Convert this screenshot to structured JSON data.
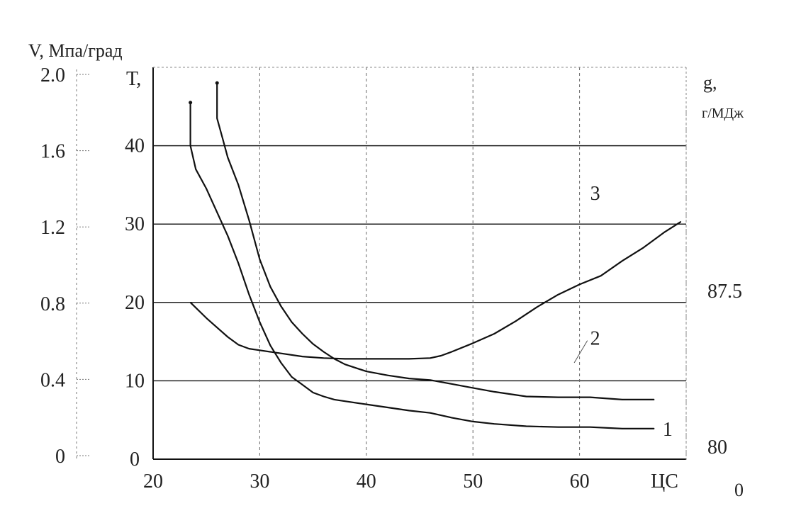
{
  "chart_data": {
    "type": "line",
    "x_axis": {
      "range": [
        20,
        70
      ],
      "ticks": [
        20,
        30,
        40,
        50,
        60
      ],
      "tick_labels": [
        "20",
        "30",
        "40",
        "50",
        "60"
      ],
      "label": "ЦС",
      "gridlines": true
    },
    "v_axis": {
      "label": "V, Мпа/град",
      "range": [
        0,
        2.0
      ],
      "tick_labels": [
        "0",
        "0.4",
        "0.8",
        "1.2",
        "1.6",
        "2.0"
      ]
    },
    "t_axis": {
      "label": "Т,",
      "range": [
        0,
        50
      ],
      "ticks": [
        0,
        10,
        20,
        30,
        40
      ],
      "tick_labels": [
        "0",
        "10",
        "20",
        "30",
        "40"
      ],
      "gridlines": true
    },
    "g_axis": {
      "label_line1": "g,",
      "label_line2": "г/МДж",
      "tick_labels": [
        "80",
        "87.5"
      ],
      "corner_label": "0"
    },
    "series": [
      {
        "name": "1",
        "x": [
          23.5,
          23.5,
          24.0,
          25.0,
          26.0,
          27.0,
          28.0,
          29.0,
          30.0,
          31.0,
          32.0,
          33.0,
          34.0,
          35.0,
          36.0,
          37.0,
          38.0,
          40.0,
          42.0,
          44.0,
          46.0,
          48.0,
          50.0,
          52.0,
          55.0,
          58.0,
          61.0,
          64.0,
          67.0
        ],
        "y": [
          45.5,
          40.0,
          37.0,
          34.5,
          31.5,
          28.5,
          25.0,
          21.0,
          17.5,
          14.5,
          12.3,
          10.5,
          9.5,
          8.5,
          8.0,
          7.6,
          7.4,
          7.0,
          6.6,
          6.2,
          5.9,
          5.3,
          4.8,
          4.5,
          4.2,
          4.1,
          4.1,
          3.9,
          3.9
        ]
      },
      {
        "name": "2",
        "x": [
          26.0,
          26.0,
          26.5,
          27.0,
          28.0,
          29.0,
          30.0,
          31.0,
          32.0,
          33.0,
          34.0,
          35.0,
          36.0,
          37.0,
          38.0,
          40.0,
          42.0,
          44.0,
          46.0,
          48.0,
          50.0,
          52.0,
          55.0,
          58.0,
          61.0,
          64.0,
          67.0
        ],
        "y": [
          48.0,
          43.5,
          41.0,
          38.5,
          35.0,
          30.5,
          25.5,
          22.0,
          19.5,
          17.5,
          16.0,
          14.7,
          13.7,
          12.8,
          12.1,
          11.2,
          10.7,
          10.3,
          10.1,
          9.6,
          9.1,
          8.6,
          8.0,
          7.9,
          7.9,
          7.6,
          7.6
        ]
      },
      {
        "name": "3",
        "x": [
          23.5,
          25.0,
          26.0,
          27.0,
          28.0,
          29.0,
          30.0,
          32.0,
          34.0,
          36.0,
          38.0,
          40.0,
          42.0,
          44.0,
          46.0,
          47.0,
          48.0,
          50.0,
          52.0,
          54.0,
          56.0,
          58.0,
          60.0,
          62.0,
          64.0,
          66.0,
          68.0,
          69.5
        ],
        "y": [
          20.0,
          18.0,
          16.8,
          15.6,
          14.6,
          14.1,
          13.9,
          13.5,
          13.1,
          12.9,
          12.8,
          12.8,
          12.8,
          12.8,
          12.9,
          13.2,
          13.7,
          14.8,
          16.0,
          17.6,
          19.4,
          21.0,
          22.3,
          23.4,
          25.3,
          27.0,
          29.0,
          30.3
        ]
      }
    ],
    "annotations": [
      {
        "text": "1",
        "x": 67.8,
        "y": 3.9
      },
      {
        "text": "2",
        "x": 61.0,
        "y": 15.5
      },
      {
        "text": "3",
        "x": 61.0,
        "y": 34.0
      }
    ]
  }
}
